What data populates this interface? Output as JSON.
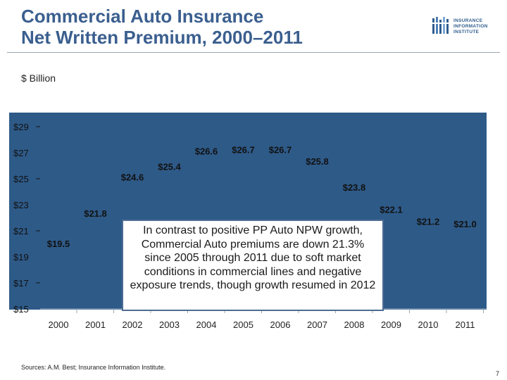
{
  "title": {
    "line1": "Commercial Auto Insurance",
    "line2": "Net Written Premium, 2000–2011"
  },
  "logo": {
    "line1": "INSURANCE",
    "line2": "INFORMATION",
    "line3": "INSTITUTE"
  },
  "unit_label": "$ Billion",
  "callout_text": "In contrast to positive PP Auto NPW growth, Commercial Auto premiums are down 21.3% since 2005 through 2011 due to soft market conditions in commercial lines and negative exposure trends, though growth resumed in 2012",
  "source": "Sources: A.M. Best; Insurance Information Institute.",
  "page_number": "7",
  "colors": {
    "chart_background": "#2e5a88",
    "title": "#3b5f8f",
    "label_text": "#111111"
  },
  "chart_data": {
    "type": "line",
    "title": "Commercial Auto Insurance Net Written Premium, 2000–2011",
    "ylabel": "$ Billion",
    "xlabel": "",
    "categories": [
      "2000",
      "2001",
      "2002",
      "2003",
      "2004",
      "2005",
      "2006",
      "2007",
      "2008",
      "2009",
      "2010",
      "2011"
    ],
    "values": [
      19.5,
      21.8,
      24.6,
      25.4,
      26.6,
      26.7,
      26.7,
      25.8,
      23.8,
      22.1,
      21.2,
      21.0
    ],
    "data_labels": [
      "$19.5",
      "$21.8",
      "$24.6",
      "$25.4",
      "$26.6",
      "$26.7",
      "$26.7",
      "$25.8",
      "$23.8",
      "$22.1",
      "$21.2",
      "$21.0"
    ],
    "ylim": [
      15,
      29
    ],
    "y_ticks": [
      15,
      17,
      19,
      21,
      23,
      25,
      27,
      29
    ],
    "y_tick_labels": [
      "$15",
      "$17",
      "$19",
      "$21",
      "$23",
      "$25",
      "$27",
      "$29"
    ],
    "grid": false,
    "legend": "none"
  }
}
